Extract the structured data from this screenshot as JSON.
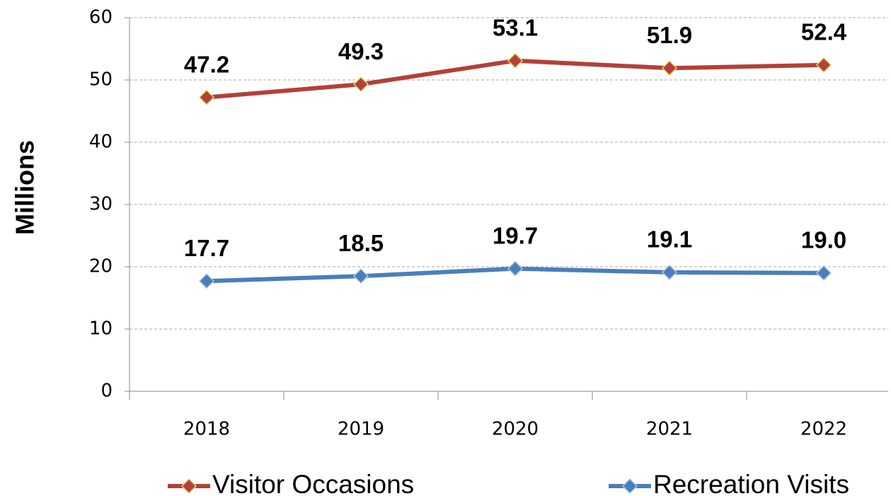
{
  "chart_data": {
    "type": "line",
    "y_label": "Millions",
    "categories": [
      "2018",
      "2019",
      "2020",
      "2021",
      "2022"
    ],
    "series": [
      {
        "name": "Visitor Occasions",
        "color": "#b3403a",
        "values": [
          47.2,
          49.3,
          53.1,
          51.9,
          52.4
        ],
        "value_labels": [
          "47.2",
          "49.3",
          "53.1",
          "51.9",
          "52.4"
        ]
      },
      {
        "name": "Recreation Visits",
        "color": "#4a7ebb",
        "values": [
          17.7,
          18.5,
          19.7,
          19.1,
          19.0
        ],
        "value_labels": [
          "17.7",
          "18.5",
          "19.7",
          "19.1",
          "19.0"
        ]
      }
    ],
    "ylim": [
      0,
      60
    ],
    "yticks": [
      0,
      10,
      20,
      30,
      40,
      50,
      60
    ],
    "grid": true,
    "legend": "bottom"
  }
}
